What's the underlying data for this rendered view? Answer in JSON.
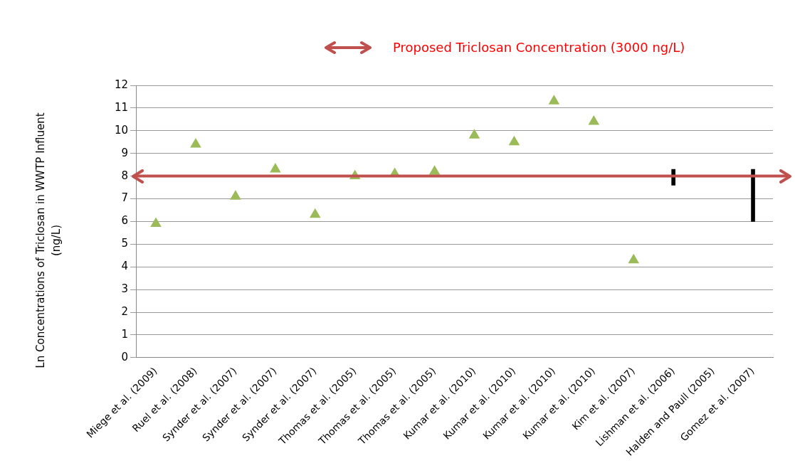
{
  "chart_data": {
    "type": "scatter",
    "ylabel": "Ln Concentrations of Triclosan in WWTP Influent (ng/L)",
    "categories": [
      "Miege et al. (2009)",
      "Ruel et al. (2008)",
      "Synder et al. (2007)",
      "Synder et al. (2007)",
      "Synder et al. (2007)",
      "Thomas et al. (2005)",
      "Thomas et al. (2005)",
      "Thomas et al. (2005)",
      "Kumar et al. (2010)",
      "Kumar et al. (2010)",
      "Kumar et al. (2010)",
      "Kumar et al. (2010)",
      "Kim et al. (2007)",
      "Lishman et al. (2006)",
      "Halden and Paull (2005)",
      "Gomez et al. (2007)"
    ],
    "series": [
      {
        "color": "#9bbb59",
        "marker": "triangle",
        "values": [
          5.9,
          9.4,
          7.1,
          8.3,
          6.3,
          8.0,
          8.1,
          8.2,
          9.8,
          9.5,
          11.3,
          10.4,
          4.3,
          null,
          null,
          null
        ]
      },
      {
        "type": "bar",
        "color": "#000000",
        "values": [
          null,
          null,
          null,
          null,
          null,
          null,
          null,
          null,
          null,
          null,
          null,
          null,
          null,
          0.7,
          null,
          2.3
        ],
        "base": [
          null,
          null,
          null,
          null,
          null,
          null,
          null,
          null,
          null,
          null,
          null,
          null,
          null,
          7.6,
          null,
          6.0
        ]
      }
    ],
    "ylim": [
      0,
      12
    ],
    "yticks": [
      0,
      1,
      2,
      3,
      4,
      5,
      6,
      7,
      8,
      9,
      10,
      11,
      12
    ],
    "grid": "y",
    "legend": "top",
    "ref_lines": [
      {
        "axis": "y",
        "value": 8,
        "label": "Proposed Triclosan Concentration (3000 ng/L)",
        "color": "#c0504d"
      }
    ]
  }
}
